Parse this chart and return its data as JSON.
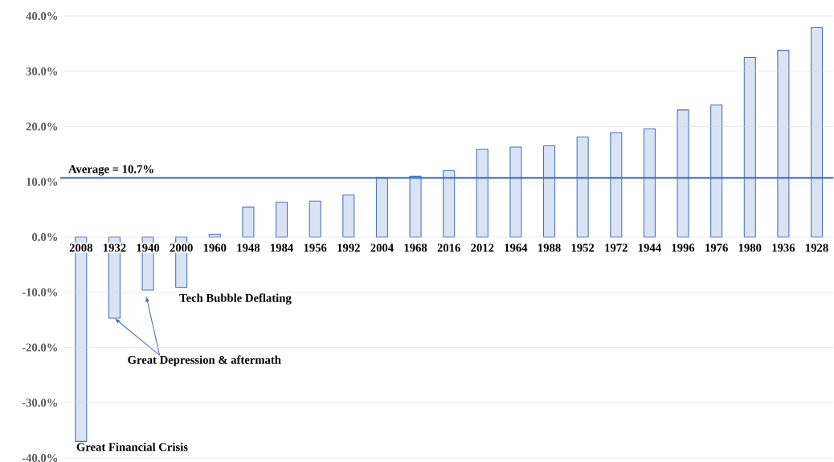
{
  "chart_data": {
    "type": "bar",
    "categories": [
      "2008",
      "1932",
      "1940",
      "2000",
      "1960",
      "1948",
      "1984",
      "1956",
      "1992",
      "2004",
      "1968",
      "2016",
      "2012",
      "1964",
      "1988",
      "1952",
      "1972",
      "1944",
      "1996",
      "1976",
      "1980",
      "1936",
      "1928"
    ],
    "values": [
      -37.0,
      -14.7,
      -9.6,
      -9.1,
      0.5,
      5.4,
      6.3,
      6.5,
      7.6,
      10.8,
      11.0,
      12.0,
      15.9,
      16.3,
      16.5,
      18.1,
      18.9,
      19.6,
      23.0,
      23.9,
      32.5,
      33.8,
      37.9
    ],
    "color": "#dae3f3",
    "ylim": [
      -40,
      40
    ],
    "yticks": [
      {
        "value": -40,
        "label": "-40.0%"
      },
      {
        "value": -30,
        "label": "-30.0%"
      },
      {
        "value": -20,
        "label": "-20.0%"
      },
      {
        "value": -10,
        "label": "-10.0%"
      },
      {
        "value": 0,
        "label": "0.0%"
      },
      {
        "value": 10,
        "label": "10.0%"
      },
      {
        "value": 20,
        "label": "20.0%"
      },
      {
        "value": 30,
        "label": "30.0%"
      },
      {
        "value": 40,
        "label": "40.0%"
      }
    ],
    "grid": "y",
    "ref_lines": [
      {
        "axis": "y",
        "value": 10.7,
        "label": "Average = 10.7%",
        "color": "#4472c4"
      }
    ],
    "annotations": [
      {
        "text": "Great Financial Crisis",
        "x": "2008",
        "y": -37.0
      },
      {
        "text": "Tech Bubble Deflating",
        "x": "2000",
        "y": -9.1
      },
      {
        "text": "Great Depression & aftermath",
        "x": "1932",
        "y": -14.7
      }
    ]
  }
}
